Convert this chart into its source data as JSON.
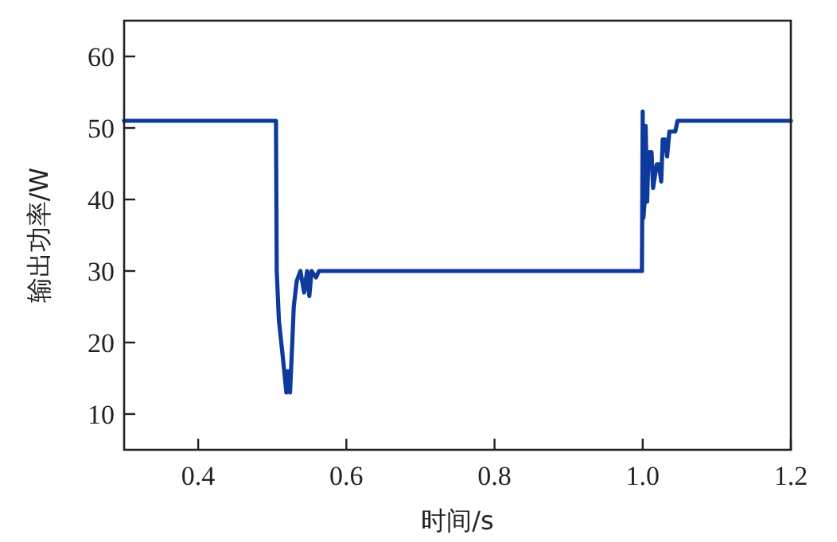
{
  "chart_data": {
    "type": "line",
    "xlabel": "时间/s",
    "ylabel": "输出功率/W",
    "xlim": [
      0.3,
      1.2
    ],
    "ylim": [
      5,
      65
    ],
    "xticks": [
      0.4,
      0.6,
      0.8,
      {
        "value": 1.0,
        "label": "1.0"
      },
      1.2
    ],
    "yticks": [
      10,
      20,
      30,
      40,
      50,
      60
    ],
    "grid": false,
    "marker": "none",
    "line_style": "solid",
    "series": [
      {
        "color": "#0d3a9c",
        "x": [
          0.3,
          0.45,
          0.505,
          0.506,
          0.509,
          0.514,
          0.519,
          0.521,
          0.524,
          0.527,
          0.529,
          0.533,
          0.538,
          0.543,
          0.547,
          0.55,
          0.553,
          0.559,
          0.563,
          0.6,
          0.8,
          0.999,
          1.0,
          1.001,
          1.003,
          1.004,
          1.006,
          1.008,
          1.012,
          1.014,
          1.016,
          1.019,
          1.022,
          1.025,
          1.027,
          1.03,
          1.033,
          1.036,
          1.039,
          1.044,
          1.047,
          1.05,
          1.1,
          1.2
        ],
        "values": [
          51,
          51,
          51,
          30,
          23,
          18.2,
          13,
          16,
          13,
          20,
          25,
          28.6,
          30,
          27,
          30,
          26.5,
          30,
          29.1,
          30,
          30,
          30,
          30,
          52.3,
          37.4,
          40.3,
          50.3,
          39.7,
          46.6,
          46.6,
          41.6,
          43,
          44.9,
          44.9,
          42.5,
          48.4,
          48.4,
          46,
          49.5,
          49.5,
          49.5,
          51,
          51,
          51,
          51
        ]
      }
    ]
  }
}
